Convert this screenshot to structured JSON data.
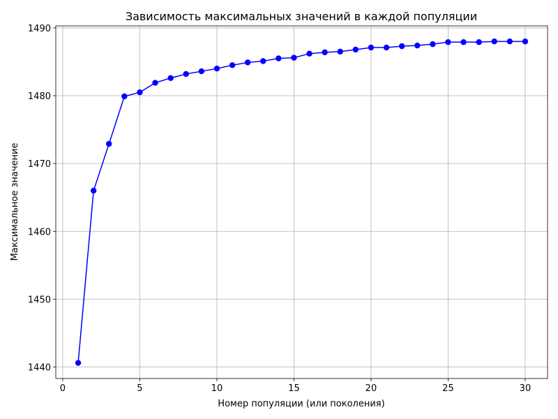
{
  "chart_data": {
    "type": "line",
    "title": "Зависимость максимальных значений в каждой популяции",
    "xlabel": "Номер популяции (или поколения)",
    "ylabel": "Максимальное значение",
    "xlim": [
      -0.45,
      31.45
    ],
    "ylim": [
      1438.3,
      1490.3
    ],
    "xticks": [
      0,
      5,
      10,
      15,
      20,
      25,
      30
    ],
    "yticks": [
      1440,
      1450,
      1460,
      1470,
      1480,
      1490
    ],
    "grid": true,
    "series": [
      {
        "color": "#0000ff",
        "marker": "circle",
        "x": [
          1,
          2,
          3,
          4,
          5,
          6,
          7,
          8,
          9,
          10,
          11,
          12,
          13,
          14,
          15,
          16,
          17,
          18,
          19,
          20,
          21,
          22,
          23,
          24,
          25,
          26,
          27,
          28,
          29,
          30
        ],
        "y": [
          1440.6,
          1466.0,
          1472.9,
          1479.9,
          1480.5,
          1481.9,
          1482.6,
          1483.2,
          1483.6,
          1484.0,
          1484.5,
          1484.9,
          1485.1,
          1485.5,
          1485.6,
          1486.2,
          1486.4,
          1486.5,
          1486.8,
          1487.1,
          1487.1,
          1487.3,
          1487.4,
          1487.6,
          1487.9,
          1487.9,
          1487.9,
          1488.0,
          1488.0,
          1488.0
        ]
      }
    ]
  }
}
